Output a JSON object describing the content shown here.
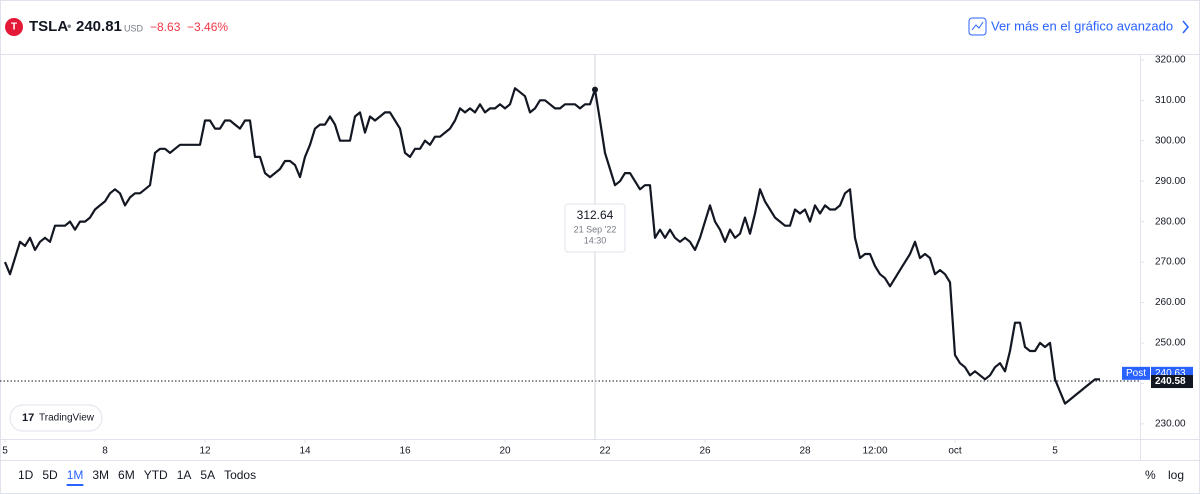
{
  "header": {
    "symbol": "TSLA",
    "separator": "•",
    "price": "240.81",
    "currency": "USD",
    "change": "−8.63",
    "change_pct": "−3.46%",
    "link": "Ver más en el gráfico avanzado"
  },
  "toolbar": {
    "ranges": [
      "1D",
      "5D",
      "1M",
      "3M",
      "6M",
      "YTD",
      "1A",
      "5A",
      "Todos"
    ],
    "active": 2,
    "options": [
      "%",
      "log"
    ]
  },
  "watermark": "TradingView",
  "chart_data": {
    "type": "line",
    "x": [
      0,
      0.1,
      0.2,
      0.3,
      0.4,
      0.5,
      0.6,
      0.7,
      0.8,
      0.9,
      1,
      1.1,
      1.2,
      1.3,
      1.4,
      1.5,
      1.6,
      1.7,
      1.8,
      1.9,
      2,
      2.1,
      2.2,
      2.3,
      2.4,
      2.5,
      2.6,
      2.7,
      2.8,
      2.9,
      3,
      3.1,
      3.2,
      3.3,
      3.4,
      3.5,
      3.6,
      3.7,
      3.8,
      3.9,
      4,
      4.1,
      4.2,
      4.3,
      4.4,
      4.5,
      4.6,
      4.7,
      4.8,
      4.9,
      5,
      5.1,
      5.2,
      5.3,
      5.4,
      5.5,
      5.6,
      5.7,
      5.8,
      5.9,
      6,
      6.1,
      6.2,
      6.3,
      6.4,
      6.5,
      6.6,
      6.7,
      6.8,
      6.9,
      7,
      7.1,
      7.2,
      7.3,
      7.4,
      7.5,
      7.6,
      7.7,
      7.8,
      7.9,
      8,
      8.1,
      8.2,
      8.3,
      8.4,
      8.5,
      8.6,
      8.7,
      8.8,
      8.9,
      9,
      9.1,
      9.2,
      9.3,
      9.4,
      9.5,
      9.6,
      9.7,
      9.8,
      9.9,
      10,
      10.1,
      10.2,
      10.3,
      10.4,
      10.5,
      10.6,
      10.7,
      10.8,
      10.9,
      11,
      11.1,
      11.2,
      11.3,
      11.4,
      11.5,
      11.6,
      11.7,
      11.8,
      11.9,
      12,
      12.1,
      12.2,
      12.3,
      12.4,
      12.5,
      12.6,
      12.7,
      12.8,
      12.9,
      13,
      13.1,
      13.2,
      13.3,
      13.4,
      13.5,
      13.6,
      13.7,
      13.8,
      13.9,
      14,
      14.1,
      14.2,
      14.3,
      14.4,
      14.5,
      14.6,
      14.7,
      14.8,
      14.9,
      15,
      15.1,
      15.2,
      15.3,
      15.4,
      15.5,
      15.6,
      15.7,
      15.8,
      15.9,
      16,
      16.1,
      16.2,
      16.3,
      16.4,
      16.5,
      16.6,
      16.7,
      16.8,
      16.9,
      17,
      17.1,
      17.2,
      17.3,
      17.4,
      17.5,
      17.6,
      17.7,
      17.8,
      17.9,
      18,
      18.1,
      18.2,
      18.3,
      18.4,
      18.5,
      18.6,
      18.7,
      18.8,
      18.9,
      19,
      19.1,
      19.2,
      19.3,
      19.4,
      19.5,
      19.6,
      19.7,
      19.8,
      19.9,
      20,
      20.1,
      20.2,
      20.3,
      20.4,
      20.5,
      20.6,
      20.7,
      20.8,
      20.9,
      21,
      21.1,
      21.2,
      21.3,
      21.4,
      21.5,
      21.6,
      21.7,
      21.8,
      21.9
    ],
    "series": [
      {
        "name": "TSLA",
        "color": "#131722",
        "values": [
          270,
          267,
          271,
          275,
          274,
          276,
          273,
          275,
          276,
          275,
          279,
          279,
          279,
          280,
          278,
          280,
          280,
          281,
          283,
          284,
          285,
          287,
          288,
          287,
          284,
          286,
          287,
          287,
          288,
          289,
          297,
          298,
          298,
          297,
          298,
          299,
          299,
          299,
          299,
          299,
          305,
          305,
          303,
          303,
          305,
          305,
          304,
          303,
          305,
          305,
          296,
          296,
          292,
          291,
          292,
          293,
          295,
          295,
          294,
          291,
          296,
          299,
          303,
          304,
          304,
          306,
          304,
          300,
          300,
          300,
          306,
          307,
          302,
          306,
          305,
          306,
          307,
          307,
          305,
          303,
          297,
          296,
          298,
          298,
          300,
          299,
          301,
          301,
          302,
          303,
          305,
          308,
          307,
          308,
          307,
          309,
          307,
          308,
          308,
          309,
          308,
          309,
          313,
          312,
          311,
          307,
          308,
          310,
          310,
          309,
          308,
          308,
          309,
          309,
          309,
          308,
          309,
          309,
          312.64,
          305,
          297,
          293,
          289,
          290,
          292,
          292,
          290,
          288,
          289,
          289,
          276,
          278,
          276,
          278,
          276,
          275,
          276,
          275,
          273,
          276,
          280,
          284,
          280,
          278,
          275,
          278,
          276,
          277,
          281,
          277,
          282,
          288,
          285,
          283,
          281,
          280,
          279,
          279,
          283,
          282,
          283,
          280,
          284,
          282,
          284,
          283,
          283,
          284,
          287,
          288,
          276,
          271,
          272,
          272,
          269,
          267,
          266,
          264,
          266,
          268,
          270,
          272,
          275,
          271,
          272,
          271,
          267,
          268,
          267,
          265,
          247,
          245,
          244,
          242,
          243,
          242,
          241,
          242,
          244,
          245,
          243,
          248,
          255,
          255,
          249,
          248,
          248,
          250,
          249,
          250,
          241,
          238,
          235,
          236,
          237,
          238,
          239,
          240,
          241,
          241
        ]
      }
    ],
    "xlim": [
      -0.1,
      22.7
    ],
    "xticks": [
      {
        "value": 0,
        "label": "5"
      },
      {
        "value": 2,
        "label": "8"
      },
      {
        "value": 4,
        "label": "12"
      },
      {
        "value": 6,
        "label": "14"
      },
      {
        "value": 8,
        "label": "16"
      },
      {
        "value": 10,
        "label": "20"
      },
      {
        "value": 12,
        "label": "22"
      },
      {
        "value": 14,
        "label": "26"
      },
      {
        "value": 16,
        "label": "28"
      },
      {
        "value": 17.4,
        "label": "12:00"
      },
      {
        "value": 19,
        "label": "oct"
      },
      {
        "value": 21,
        "label": "5"
      }
    ],
    "ylim": [
      226,
      321.2
    ],
    "yticks": [
      {
        "value": 230,
        "label": "230.00"
      },
      {
        "value": 240,
        "label": "240.00"
      },
      {
        "value": 250,
        "label": "250.00"
      },
      {
        "value": 260,
        "label": "260.00"
      },
      {
        "value": 270,
        "label": "270.00"
      },
      {
        "value": 280,
        "label": "280.00"
      },
      {
        "value": 290,
        "label": "290.00"
      },
      {
        "value": 300,
        "label": "300.00"
      },
      {
        "value": 310,
        "label": "310.00"
      },
      {
        "value": 320,
        "label": "320.00"
      }
    ],
    "tooltip": {
      "index": 118,
      "date": "21 Sep '22",
      "time": "14:30"
    },
    "price_lines": [
      {
        "label": "Post",
        "value": 240.63,
        "color": "#2962ff"
      },
      {
        "value": 240.58,
        "color": "#131722"
      }
    ]
  }
}
